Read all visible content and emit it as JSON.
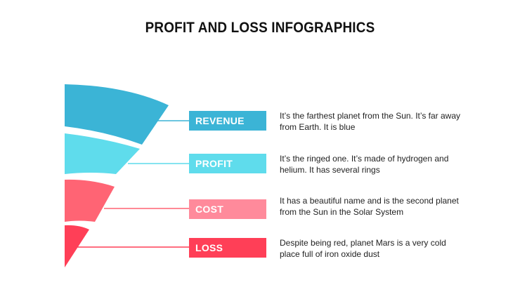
{
  "title": "PROFIT AND LOSS INFOGRAPHICS",
  "colors": {
    "revenue": "#3bb4d6",
    "profit": "#5fdcec",
    "cost": "#ff6474",
    "loss": "#ff3f57",
    "cost_tag": "#ff8a9b"
  },
  "items": [
    {
      "label": "REVENUE",
      "description": "It’s the farthest planet from the Sun. It’s far away from Earth. It is blue"
    },
    {
      "label": "PROFIT",
      "description": "It’s the ringed one. It’s made of hydrogen and helium. It has several rings"
    },
    {
      "label": "COST",
      "description": "It has a beautiful name and is the second planet from the Sun in the Solar System"
    },
    {
      "label": "LOSS",
      "description": "Despite being red, planet Mars is a very cold place full of iron oxide dust"
    }
  ]
}
